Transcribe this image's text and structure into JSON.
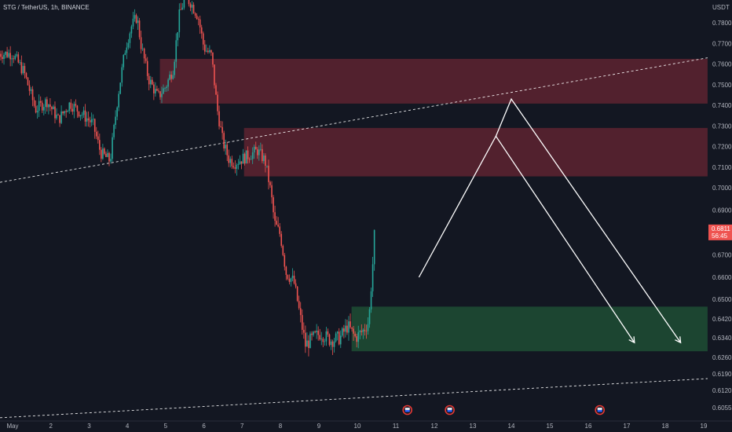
{
  "header": {
    "title": "STG / TetherUS, 1h, BINANCE"
  },
  "price_axis": {
    "currency": "USDT"
  },
  "last_price": {
    "value": "0.6811",
    "countdown": "56:45"
  },
  "colors": {
    "background": "#131722",
    "up": "#26a69a",
    "down": "#ef5350",
    "supply_zone": "#5a2230",
    "demand_zone": "#1e4a33",
    "axis_text": "#b2b5be",
    "trend_lines": "#ffffff",
    "price_label": "#ef5350"
  },
  "chart_data": {
    "type": "candlestick",
    "symbol": "STG / TetherUS",
    "interval": "1h",
    "exchange": "BINANCE",
    "y_ticks": [
      "0.7800",
      "0.7700",
      "0.7600",
      "0.7500",
      "0.7400",
      "0.7300",
      "0.7200",
      "0.7100",
      "0.7000",
      "0.6900",
      "0.6811",
      "0.6700",
      "0.6600",
      "0.6500",
      "0.6420",
      "0.6340",
      "0.6260",
      "0.6190",
      "0.6120",
      "0.6055"
    ],
    "x_ticks": [
      "May",
      "2",
      "3",
      "4",
      "5",
      "6",
      "7",
      "8",
      "9",
      "10",
      "11",
      "12",
      "13",
      "14",
      "15",
      "16",
      "17",
      "18",
      "19"
    ],
    "price_path": [
      [
        1.0,
        0.765
      ],
      [
        1.3,
        0.756
      ],
      [
        1.6,
        0.738
      ],
      [
        1.9,
        0.742
      ],
      [
        2.2,
        0.733
      ],
      [
        2.5,
        0.741
      ],
      [
        2.8,
        0.736
      ],
      [
        3.1,
        0.731
      ],
      [
        3.3,
        0.717
      ],
      [
        3.55,
        0.713
      ],
      [
        3.75,
        0.744
      ],
      [
        3.95,
        0.768
      ],
      [
        4.1,
        0.778
      ],
      [
        4.25,
        0.783
      ],
      [
        4.35,
        0.77
      ],
      [
        4.55,
        0.753
      ],
      [
        4.8,
        0.744
      ],
      [
        5.0,
        0.749
      ],
      [
        5.2,
        0.758
      ],
      [
        5.35,
        0.783
      ],
      [
        5.5,
        0.792
      ],
      [
        5.65,
        0.79
      ],
      [
        5.85,
        0.783
      ],
      [
        6.0,
        0.768
      ],
      [
        6.2,
        0.764
      ],
      [
        6.35,
        0.738
      ],
      [
        6.5,
        0.722
      ],
      [
        6.65,
        0.714
      ],
      [
        6.8,
        0.712
      ],
      [
        7.0,
        0.714
      ],
      [
        7.2,
        0.716
      ],
      [
        7.4,
        0.718
      ],
      [
        7.6,
        0.713
      ],
      [
        7.75,
        0.698
      ],
      [
        7.85,
        0.684
      ],
      [
        8.0,
        0.679
      ],
      [
        8.15,
        0.662
      ],
      [
        8.35,
        0.658
      ],
      [
        8.5,
        0.644
      ],
      [
        8.65,
        0.631
      ],
      [
        8.85,
        0.634
      ],
      [
        9.05,
        0.636
      ],
      [
        9.3,
        0.633
      ],
      [
        9.55,
        0.634
      ],
      [
        9.75,
        0.639
      ],
      [
        9.95,
        0.634
      ],
      [
        10.15,
        0.637
      ],
      [
        10.3,
        0.641
      ],
      [
        10.4,
        0.666
      ],
      [
        10.45,
        0.6811
      ]
    ],
    "zones": [
      {
        "type": "supply",
        "from_x": 4.85,
        "to_x": 19.1,
        "y_low": 0.7408,
        "y_high": 0.7625
      },
      {
        "type": "supply",
        "from_x": 7.05,
        "to_x": 19.1,
        "y_low": 0.7055,
        "y_high": 0.729
      },
      {
        "type": "demand",
        "from_x": 9.85,
        "to_x": 19.1,
        "y_low": 0.6285,
        "y_high": 0.647
      }
    ],
    "dashed_lines": [
      {
        "from": [
          1.0,
          0.703
        ],
        "to": [
          19.1,
          0.763
        ]
      },
      {
        "from": [
          1.0,
          0.602
        ],
        "to": [
          19.1,
          0.617
        ]
      }
    ],
    "projections": [
      {
        "points": [
          [
            11.6,
            0.66
          ],
          [
            13.6,
            0.725
          ],
          [
            17.2,
            0.632
          ]
        ]
      },
      {
        "points": [
          [
            13.6,
            0.725
          ],
          [
            14.0,
            0.743
          ],
          [
            18.4,
            0.632
          ]
        ]
      }
    ],
    "event_markers": [
      11.3,
      12.4,
      16.3
    ]
  }
}
